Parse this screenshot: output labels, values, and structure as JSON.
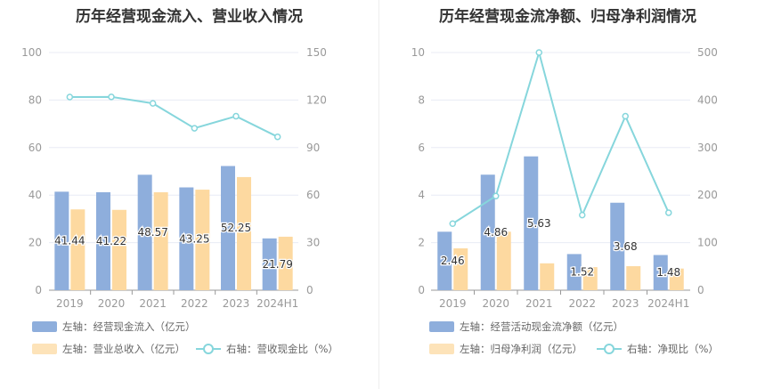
{
  "colors": {
    "blue": "#8eaedc",
    "orange": "#fdd9a0",
    "line": "#86d6dc",
    "grid": "#e8ebf5",
    "axis": "#999999"
  },
  "chart_data": [
    {
      "type": "bar",
      "title": "历年经营现金流入、营业收入情况",
      "categories": [
        "2019",
        "2020",
        "2021",
        "2022",
        "2023",
        "2024H1"
      ],
      "left_axis": {
        "ylim": [
          0,
          100
        ],
        "ticks": [
          "0",
          "20",
          "40",
          "60",
          "80",
          "100"
        ]
      },
      "right_axis": {
        "ylim": [
          0,
          150
        ],
        "ticks": [
          "0",
          "30",
          "60",
          "90",
          "120",
          "150"
        ]
      },
      "series": [
        {
          "name": "左轴：经营现金流入（亿元）",
          "kind": "bar",
          "axis": "left",
          "values": [
            41.44,
            41.22,
            48.57,
            43.25,
            52.25,
            21.79
          ],
          "labels": [
            "41.44",
            "41.22",
            "48.57",
            "43.25",
            "52.25",
            "21.79"
          ]
        },
        {
          "name": "左轴：营业总收入（亿元）",
          "kind": "bar",
          "axis": "left",
          "values": [
            34.0,
            33.8,
            41.2,
            42.3,
            47.6,
            22.5
          ]
        },
        {
          "name": "右轴：营收现金比（%）",
          "kind": "line",
          "axis": "right",
          "values": [
            121.9,
            122.0,
            117.9,
            102.2,
            109.8,
            96.8
          ]
        }
      ],
      "legend_position": "bottom-left",
      "grid": true
    },
    {
      "type": "bar",
      "title": "历年经营现金流净额、归母净利润情况",
      "categories": [
        "2019",
        "2020",
        "2021",
        "2022",
        "2023",
        "2024H1"
      ],
      "left_axis": {
        "ylim": [
          0,
          10
        ],
        "ticks": [
          "0",
          "2",
          "4",
          "6",
          "8",
          "10"
        ]
      },
      "right_axis": {
        "ylim": [
          0,
          500
        ],
        "ticks": [
          "0",
          "100",
          "200",
          "300",
          "400",
          "500"
        ]
      },
      "series": [
        {
          "name": "左轴：经营活动现金流净额（亿元）",
          "kind": "bar",
          "axis": "left",
          "values": [
            2.46,
            4.86,
            5.63,
            1.52,
            3.68,
            1.48
          ],
          "labels": [
            "2.46",
            "4.86",
            "5.63",
            "1.52",
            "3.68",
            "1.48"
          ]
        },
        {
          "name": "左轴：归母净利润（亿元）",
          "kind": "bar",
          "axis": "left",
          "values": [
            1.76,
            2.46,
            1.13,
            0.97,
            1.01,
            0.91
          ]
        },
        {
          "name": "右轴：净现比（%）",
          "kind": "line",
          "axis": "right",
          "values": [
            140,
            198,
            500,
            158,
            366,
            163
          ]
        }
      ],
      "legend_position": "bottom-left",
      "grid": true
    }
  ]
}
